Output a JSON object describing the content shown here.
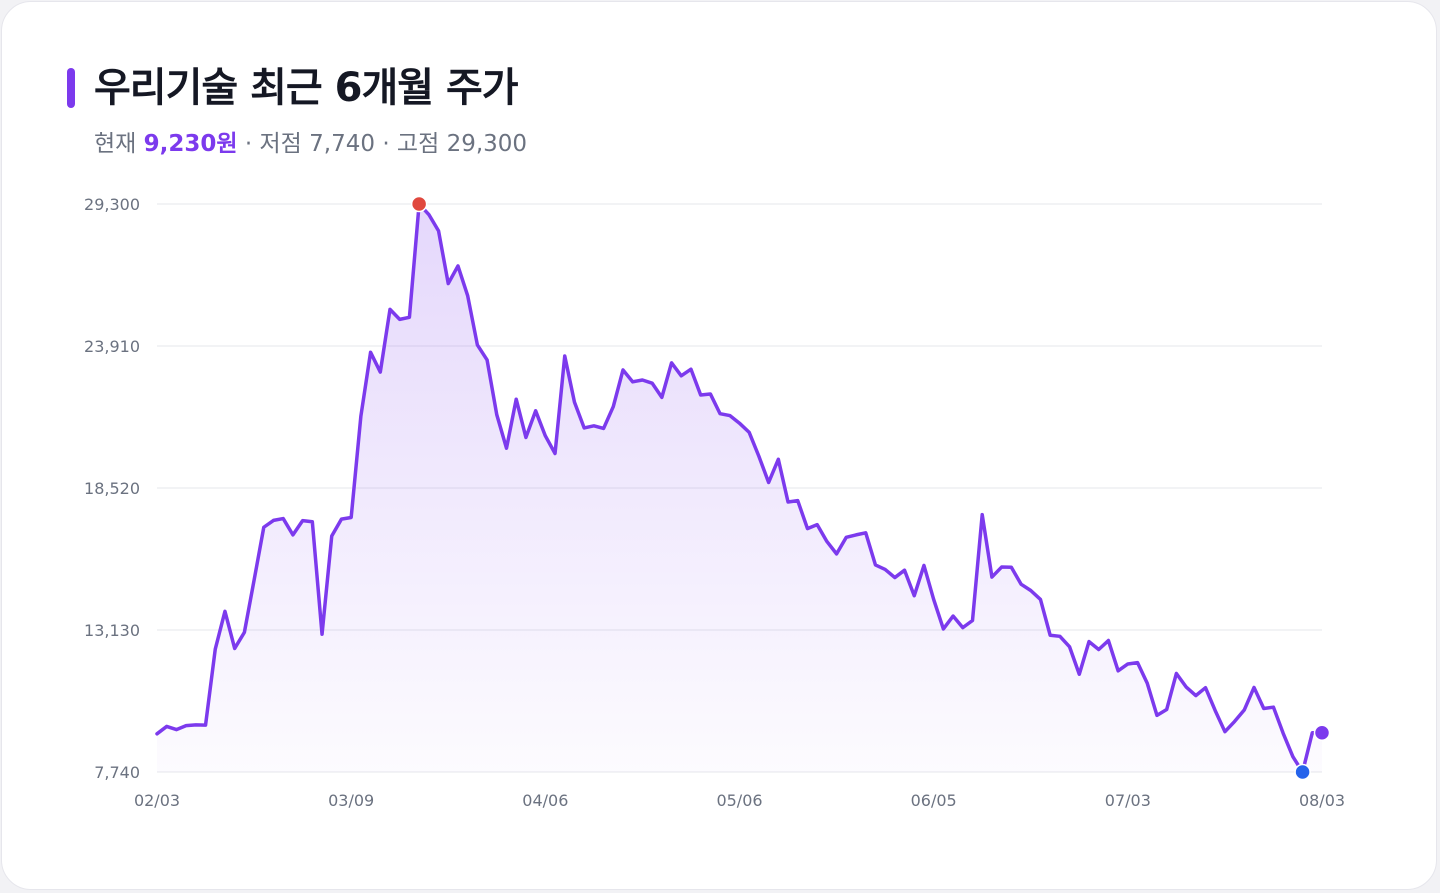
{
  "header": {
    "title": "우리기술 최근 6개월 주가",
    "current_label": "현재",
    "current_value": "9,230원",
    "low_label": "· 저점",
    "low_value": "7,740",
    "high_label": "· 고점",
    "high_value": "29,300"
  },
  "colors": {
    "line": "#7c3aed",
    "high_marker": "#e0483e",
    "low_marker": "#2563eb",
    "last_marker": "#7c3aed",
    "grid": "#e5e7eb"
  },
  "chart_data": {
    "type": "line",
    "title": "우리기술 최근 6개월 주가",
    "xlabel": "",
    "ylabel": "",
    "ylim": [
      7740,
      29300
    ],
    "y_ticks": [
      7740,
      13130,
      18520,
      23910,
      29300
    ],
    "y_tick_labels": [
      "7,740",
      "13,130",
      "18,520",
      "23,910",
      "29,300"
    ],
    "x_tick_labels": [
      "02/03",
      "03/09",
      "04/06",
      "05/06",
      "06/05",
      "07/03",
      "08/03"
    ],
    "x_tick_index": [
      0,
      20,
      40,
      60,
      80,
      100,
      120
    ],
    "grid": true,
    "area_fill": true,
    "markers": {
      "high": {
        "index": 27,
        "value": 29300
      },
      "low": {
        "index": 118,
        "value": 7740
      },
      "last": {
        "index": 120,
        "value": 9230
      }
    },
    "series": [
      {
        "values": [
          9190,
          9470,
          9350,
          9500,
          9530,
          9520,
          12400,
          13840,
          12430,
          13040,
          15020,
          17030,
          17290,
          17360,
          16740,
          17280,
          17240,
          12970,
          16700,
          17340,
          17400,
          21250,
          23670,
          22920,
          25300,
          24920,
          25000,
          29300,
          28900,
          28280,
          26280,
          26950,
          25820,
          23950,
          23380,
          21300,
          20030,
          21890,
          20440,
          21450,
          20500,
          19830,
          23530,
          21780,
          20800,
          20880,
          20780,
          21610,
          23000,
          22550,
          22620,
          22500,
          21960,
          23270,
          22780,
          23030,
          22050,
          22090,
          21340,
          21270,
          20980,
          20630,
          19720,
          18730,
          19610,
          17990,
          18040,
          16980,
          17130,
          16490,
          16020,
          16650,
          16740,
          16820,
          15600,
          15430,
          15120,
          15400,
          14430,
          15580,
          14290,
          13170,
          13660,
          13220,
          13490,
          17510,
          15140,
          15520,
          15510,
          14870,
          14630,
          14290,
          12930,
          12890,
          12490,
          11450,
          12690,
          12390,
          12730,
          11580,
          11840,
          11890,
          11110,
          9890,
          10110,
          11480,
          10970,
          10640,
          10940,
          10070,
          9270,
          9660,
          10100,
          10950,
          10150,
          10200,
          9210,
          8320,
          7740,
          9230,
          9230
        ]
      }
    ]
  }
}
